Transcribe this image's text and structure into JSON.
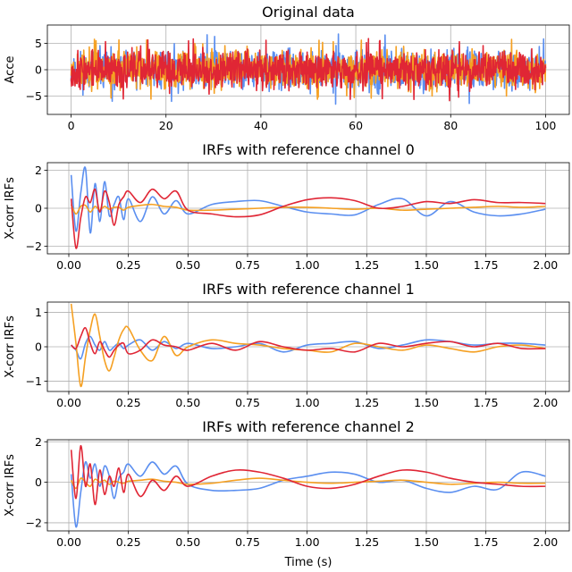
{
  "figure": {
    "xlabel": "Time (s)"
  },
  "chart_data": [
    {
      "type": "line",
      "title": "Original data",
      "ylabel": "Acce",
      "xlim": [
        -5,
        105
      ],
      "ylim": [
        -8.5,
        8.5
      ],
      "xticks": [
        0,
        20,
        40,
        60,
        80,
        100
      ],
      "xtick_labels": [
        "0",
        "20",
        "40",
        "60",
        "80",
        "100"
      ],
      "yticks": [
        -5,
        0,
        5
      ],
      "ytick_labels": [
        "−5",
        "0",
        "5"
      ],
      "grid": true,
      "signal": {
        "kind": "noise",
        "x_range": [
          0,
          100
        ],
        "amplitude": 2.2,
        "peak": 6.5
      },
      "series": [
        {
          "color": "#5b8ff0",
          "seed": 11,
          "peak": 6.8
        },
        {
          "color": "#f5a022",
          "seed": 23,
          "peak": 5.8
        },
        {
          "color": "#e02635",
          "seed": 37,
          "peak": 6.0
        }
      ]
    },
    {
      "type": "line",
      "title": "IRFs with reference channel 0",
      "ylabel": "X-corr IRFs",
      "xlim": [
        -0.09,
        2.1
      ],
      "ylim": [
        -2.4,
        2.4
      ],
      "xticks": [
        0,
        0.25,
        0.5,
        0.75,
        1.0,
        1.25,
        1.5,
        1.75,
        2.0
      ],
      "xtick_labels": [
        "0.00",
        "0.25",
        "0.50",
        "0.75",
        "1.00",
        "1.25",
        "1.50",
        "1.75",
        "2.00"
      ],
      "yticks": [
        -2,
        0,
        2
      ],
      "ytick_labels": [
        "−2",
        "0",
        "2"
      ],
      "grid": true,
      "series": [
        {
          "color": "#5b8ff0",
          "x": [
            0.01,
            0.03,
            0.05,
            0.07,
            0.09,
            0.11,
            0.13,
            0.15,
            0.17,
            0.19,
            0.21,
            0.23,
            0.25,
            0.3,
            0.35,
            0.4,
            0.45,
            0.5,
            0.6,
            0.7,
            0.8,
            0.9,
            1.0,
            1.1,
            1.2,
            1.3,
            1.4,
            1.5,
            1.6,
            1.7,
            1.8,
            1.9,
            2.0
          ],
          "values": [
            1.75,
            -1.2,
            0.8,
            2.1,
            -1.3,
            1.3,
            -0.7,
            1.4,
            -0.4,
            0.2,
            0.6,
            -0.6,
            0.5,
            -0.7,
            0.6,
            -0.3,
            0.4,
            -0.3,
            0.2,
            0.35,
            0.4,
            0.1,
            -0.2,
            -0.3,
            -0.35,
            0.2,
            0.5,
            -0.4,
            0.35,
            -0.2,
            -0.4,
            -0.3,
            -0.05
          ]
        },
        {
          "color": "#f5a022",
          "x": [
            0.01,
            0.03,
            0.05,
            0.07,
            0.09,
            0.11,
            0.13,
            0.15,
            0.17,
            0.19,
            0.21,
            0.23,
            0.25,
            0.3,
            0.35,
            0.4,
            0.45,
            0.5,
            0.6,
            0.7,
            0.8,
            0.9,
            1.0,
            1.1,
            1.2,
            1.3,
            1.4,
            1.5,
            1.6,
            1.7,
            1.8,
            1.9,
            2.0
          ],
          "values": [
            0.2,
            -0.3,
            0.1,
            0.15,
            -0.2,
            0.1,
            -0.1,
            0.1,
            -0.05,
            0.05,
            0.05,
            -0.1,
            0.05,
            0.15,
            0.2,
            0.1,
            0.05,
            -0.1,
            -0.1,
            -0.05,
            0.0,
            0.05,
            0.05,
            0.0,
            -0.05,
            0.0,
            -0.1,
            -0.05,
            0.0,
            0.05,
            0.1,
            0.05,
            0.1
          ]
        },
        {
          "color": "#e02635",
          "x": [
            0.01,
            0.03,
            0.05,
            0.07,
            0.09,
            0.11,
            0.13,
            0.15,
            0.17,
            0.19,
            0.21,
            0.23,
            0.25,
            0.3,
            0.35,
            0.4,
            0.45,
            0.5,
            0.6,
            0.7,
            0.8,
            0.9,
            1.0,
            1.1,
            1.2,
            1.3,
            1.4,
            1.5,
            1.6,
            1.7,
            1.8,
            1.9,
            2.0
          ],
          "values": [
            0.5,
            -2.1,
            -0.5,
            0.6,
            0.3,
            1.0,
            -0.2,
            0.9,
            0.3,
            -0.9,
            0.2,
            0.6,
            0.9,
            0.3,
            1.0,
            0.5,
            0.9,
            -0.1,
            -0.3,
            -0.45,
            -0.35,
            0.1,
            0.45,
            0.55,
            0.4,
            0.0,
            0.1,
            0.35,
            0.25,
            0.45,
            0.3,
            0.3,
            0.25
          ]
        }
      ]
    },
    {
      "type": "line",
      "title": "IRFs with reference channel 1",
      "ylabel": "X-corr IRFs",
      "xlim": [
        -0.09,
        2.1
      ],
      "ylim": [
        -1.3,
        1.3
      ],
      "xticks": [
        0,
        0.25,
        0.5,
        0.75,
        1.0,
        1.25,
        1.5,
        1.75,
        2.0
      ],
      "xtick_labels": [
        "0.00",
        "0.25",
        "0.50",
        "0.75",
        "1.00",
        "1.25",
        "1.50",
        "1.75",
        "2.00"
      ],
      "yticks": [
        -1,
        0,
        1
      ],
      "ytick_labels": [
        "−1",
        "0",
        "1"
      ],
      "grid": true,
      "series": [
        {
          "color": "#5b8ff0",
          "x": [
            0.01,
            0.03,
            0.05,
            0.07,
            0.09,
            0.11,
            0.13,
            0.15,
            0.17,
            0.19,
            0.21,
            0.23,
            0.25,
            0.3,
            0.35,
            0.4,
            0.45,
            0.5,
            0.6,
            0.7,
            0.8,
            0.9,
            1.0,
            1.1,
            1.2,
            1.3,
            1.4,
            1.5,
            1.6,
            1.7,
            1.8,
            1.9,
            2.0
          ],
          "values": [
            0.05,
            -0.1,
            -0.35,
            0.1,
            0.3,
            0.05,
            -0.1,
            0.15,
            -0.1,
            0.0,
            0.1,
            -0.05,
            0.05,
            0.2,
            -0.1,
            0.15,
            -0.05,
            0.1,
            -0.05,
            0.0,
            0.1,
            -0.15,
            0.05,
            0.1,
            0.15,
            -0.05,
            0.05,
            0.2,
            0.15,
            0.05,
            0.1,
            0.1,
            0.05
          ]
        },
        {
          "color": "#f5a022",
          "x": [
            0.01,
            0.03,
            0.05,
            0.07,
            0.09,
            0.11,
            0.13,
            0.15,
            0.17,
            0.19,
            0.21,
            0.23,
            0.25,
            0.3,
            0.35,
            0.4,
            0.45,
            0.5,
            0.6,
            0.7,
            0.8,
            0.9,
            1.0,
            1.1,
            1.2,
            1.3,
            1.4,
            1.5,
            1.6,
            1.7,
            1.8,
            1.9,
            2.0
          ],
          "values": [
            1.25,
            0.1,
            -1.15,
            -0.3,
            0.5,
            0.95,
            0.3,
            -0.4,
            -0.7,
            -0.3,
            0.2,
            0.5,
            0.55,
            -0.1,
            -0.4,
            0.3,
            -0.25,
            0.0,
            0.2,
            0.1,
            0.05,
            -0.05,
            -0.1,
            -0.15,
            0.1,
            0.0,
            -0.1,
            0.05,
            -0.05,
            -0.15,
            0.0,
            0.05,
            -0.05
          ]
        },
        {
          "color": "#e02635",
          "x": [
            0.01,
            0.03,
            0.05,
            0.07,
            0.09,
            0.11,
            0.13,
            0.15,
            0.17,
            0.19,
            0.21,
            0.23,
            0.25,
            0.3,
            0.35,
            0.4,
            0.45,
            0.5,
            0.6,
            0.7,
            0.8,
            0.9,
            1.0,
            1.1,
            1.2,
            1.3,
            1.4,
            1.5,
            1.6,
            1.7,
            1.8,
            1.9,
            2.0
          ],
          "values": [
            0.05,
            -0.05,
            0.3,
            0.55,
            0.1,
            -0.2,
            0.15,
            -0.1,
            -0.3,
            -0.1,
            0.05,
            0.1,
            -0.2,
            -0.1,
            0.2,
            0.05,
            0.0,
            -0.1,
            0.1,
            -0.1,
            0.15,
            0.0,
            -0.1,
            -0.05,
            -0.15,
            0.1,
            0.0,
            0.1,
            0.15,
            0.0,
            0.1,
            -0.05,
            -0.05
          ]
        }
      ]
    },
    {
      "type": "line",
      "title": "IRFs with reference channel 2",
      "ylabel": "X-corr IRFs",
      "xlim": [
        -0.09,
        2.1
      ],
      "ylim": [
        -2.4,
        2.1
      ],
      "xticks": [
        0,
        0.25,
        0.5,
        0.75,
        1.0,
        1.25,
        1.5,
        1.75,
        2.0
      ],
      "xtick_labels": [
        "0.00",
        "0.25",
        "0.50",
        "0.75",
        "1.00",
        "1.25",
        "1.50",
        "1.75",
        "2.00"
      ],
      "yticks": [
        -2,
        0,
        2
      ],
      "ytick_labels": [
        "−2",
        "0",
        "2"
      ],
      "grid": true,
      "series": [
        {
          "color": "#5b8ff0",
          "x": [
            0.01,
            0.03,
            0.05,
            0.07,
            0.09,
            0.11,
            0.13,
            0.15,
            0.17,
            0.19,
            0.21,
            0.23,
            0.25,
            0.3,
            0.35,
            0.4,
            0.45,
            0.5,
            0.6,
            0.7,
            0.8,
            0.9,
            1.0,
            1.1,
            1.2,
            1.3,
            1.4,
            1.5,
            1.6,
            1.7,
            1.8,
            1.9,
            2.0
          ],
          "values": [
            0.4,
            -2.2,
            -0.5,
            1.0,
            0.2,
            0.9,
            -0.2,
            0.8,
            0.3,
            -0.8,
            0.2,
            0.5,
            0.9,
            0.3,
            1.0,
            0.4,
            0.8,
            -0.1,
            -0.4,
            -0.4,
            -0.3,
            0.1,
            0.3,
            0.5,
            0.4,
            0.0,
            0.1,
            -0.3,
            -0.5,
            -0.2,
            -0.35,
            0.5,
            0.3
          ]
        },
        {
          "color": "#f5a022",
          "x": [
            0.01,
            0.03,
            0.05,
            0.07,
            0.09,
            0.11,
            0.13,
            0.15,
            0.17,
            0.19,
            0.21,
            0.23,
            0.25,
            0.3,
            0.35,
            0.4,
            0.45,
            0.5,
            0.6,
            0.7,
            0.8,
            0.9,
            1.0,
            1.1,
            1.2,
            1.3,
            1.4,
            1.5,
            1.6,
            1.7,
            1.8,
            1.9,
            2.0
          ],
          "values": [
            0.1,
            -0.3,
            0.2,
            0.0,
            -0.2,
            0.15,
            0.0,
            0.1,
            -0.1,
            0.05,
            0.0,
            -0.05,
            0.05,
            0.1,
            0.15,
            0.05,
            0.0,
            -0.1,
            -0.05,
            0.1,
            0.2,
            0.1,
            0.0,
            -0.05,
            0.0,
            0.05,
            0.1,
            0.0,
            -0.1,
            -0.05,
            0.0,
            -0.05,
            -0.05
          ]
        },
        {
          "color": "#e02635",
          "x": [
            0.01,
            0.03,
            0.05,
            0.07,
            0.09,
            0.11,
            0.13,
            0.15,
            0.17,
            0.19,
            0.21,
            0.23,
            0.25,
            0.3,
            0.35,
            0.4,
            0.45,
            0.5,
            0.6,
            0.7,
            0.8,
            0.9,
            1.0,
            1.1,
            1.2,
            1.3,
            1.4,
            1.5,
            1.6,
            1.7,
            1.8,
            1.9,
            2.0
          ],
          "values": [
            1.6,
            -0.8,
            1.8,
            -0.2,
            0.9,
            -1.1,
            0.6,
            -0.6,
            0.3,
            -0.2,
            0.7,
            -0.5,
            0.4,
            -0.7,
            0.1,
            -0.4,
            0.3,
            -0.2,
            0.3,
            0.6,
            0.5,
            0.2,
            -0.2,
            -0.3,
            -0.1,
            0.3,
            0.6,
            0.5,
            0.2,
            0.0,
            -0.1,
            -0.2,
            -0.2
          ]
        }
      ]
    }
  ]
}
